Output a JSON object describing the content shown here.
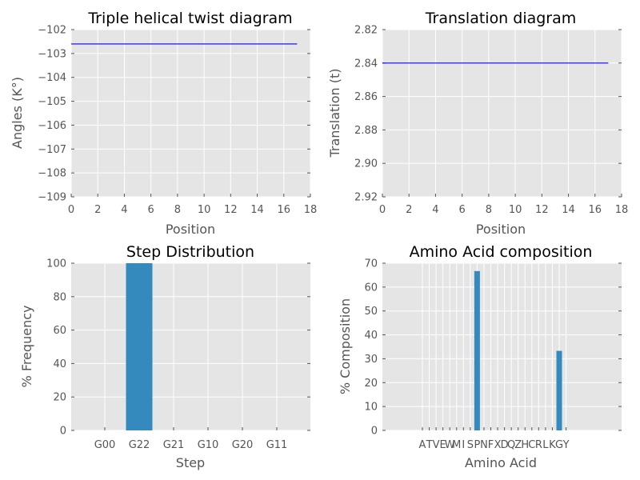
{
  "chart_data": [
    {
      "id": "twist",
      "type": "line",
      "title": "Triple helical twist diagram",
      "xlabel": "Position",
      "ylabel": "Angles (K°)",
      "xlim": [
        0,
        18
      ],
      "ylim": [
        -109,
        -102
      ],
      "y_inverted": false,
      "xticks": [
        "0",
        "2",
        "4",
        "6",
        "8",
        "10",
        "12",
        "14",
        "16",
        "18"
      ],
      "yticks": [
        "−102",
        "−103",
        "−104",
        "−105",
        "−106",
        "−107",
        "−108",
        "−109"
      ],
      "grid": true,
      "color": "#0000ff",
      "x": [
        0,
        17
      ],
      "y": [
        -102.6,
        -102.6
      ]
    },
    {
      "id": "translation",
      "type": "line",
      "title": "Translation diagram",
      "xlabel": "Position",
      "ylabel": "Translation (t)",
      "xlim": [
        0,
        18
      ],
      "ylim": [
        2.82,
        2.92
      ],
      "y_inverted": true,
      "xticks": [
        "0",
        "2",
        "4",
        "6",
        "8",
        "10",
        "12",
        "14",
        "16",
        "18"
      ],
      "yticks": [
        "2.82",
        "2.84",
        "2.86",
        "2.88",
        "2.90",
        "2.92"
      ],
      "grid": true,
      "color": "#0000ff",
      "x": [
        0,
        17
      ],
      "y": [
        2.84,
        2.84
      ]
    },
    {
      "id": "steps",
      "type": "bar",
      "title": "Step Distribution",
      "xlabel": "Step",
      "ylabel": "% Frequency",
      "ylim": [
        0,
        100
      ],
      "yticks": [
        "0",
        "20",
        "40",
        "60",
        "80",
        "100"
      ],
      "grid": true,
      "color": "#348abd",
      "categories": [
        "G00",
        "G22",
        "G21",
        "G10",
        "G20",
        "G11"
      ],
      "values": [
        0,
        100,
        0,
        0,
        0,
        0
      ]
    },
    {
      "id": "amino",
      "type": "bar",
      "title": "Amino Acid composition",
      "xlabel": "Amino Acid",
      "ylabel": "% Composition",
      "ylim": [
        0,
        70
      ],
      "yticks": [
        "0",
        "10",
        "20",
        "30",
        "40",
        "50",
        "60",
        "70"
      ],
      "grid": true,
      "color": "#348abd",
      "categories": [
        "A",
        "T",
        "V",
        "E",
        "W",
        "M",
        "I",
        "S",
        "P",
        "N",
        "F",
        "X",
        "D",
        "Q",
        "Z",
        "H",
        "C",
        "R",
        "L",
        "K",
        "G",
        "Y"
      ],
      "values": [
        0,
        0,
        0,
        0,
        0,
        0,
        0,
        0,
        66.7,
        0,
        0,
        0,
        0,
        0,
        0,
        0,
        0,
        0,
        0,
        0,
        33.3,
        0
      ]
    }
  ]
}
